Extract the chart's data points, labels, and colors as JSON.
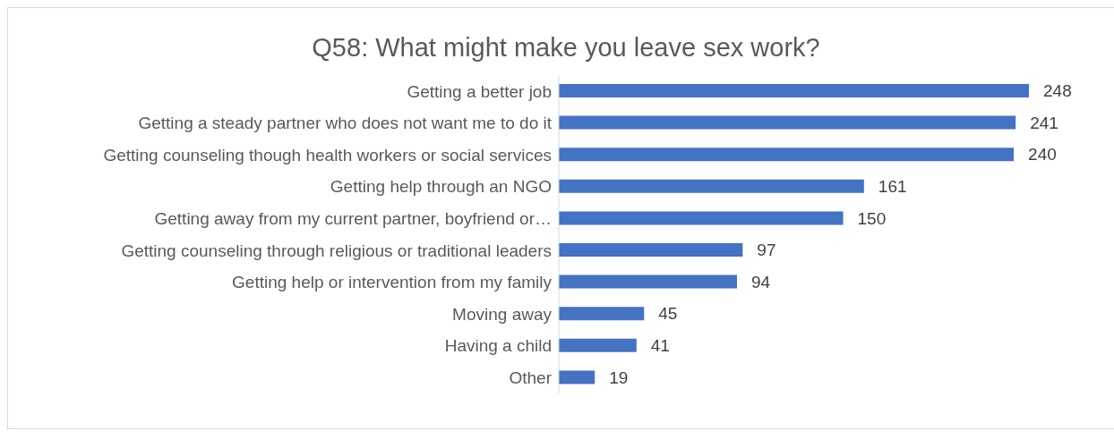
{
  "chart_data": {
    "type": "bar",
    "orientation": "horizontal",
    "title": "Q58: What might make you leave sex work?",
    "categories": [
      "Getting a better job",
      "Getting a steady partner who does not want me to do it",
      "Getting counseling though health workers or social services",
      "Getting help through an NGO",
      "Getting away from my current partner, boyfriend or…",
      "Getting counseling through religious or traditional leaders",
      "Getting help or intervention from my family",
      "Moving away",
      "Having a child",
      "Other"
    ],
    "values": [
      248,
      241,
      240,
      161,
      150,
      97,
      94,
      45,
      41,
      19
    ],
    "color": "#4472c4",
    "data_labels": true
  }
}
